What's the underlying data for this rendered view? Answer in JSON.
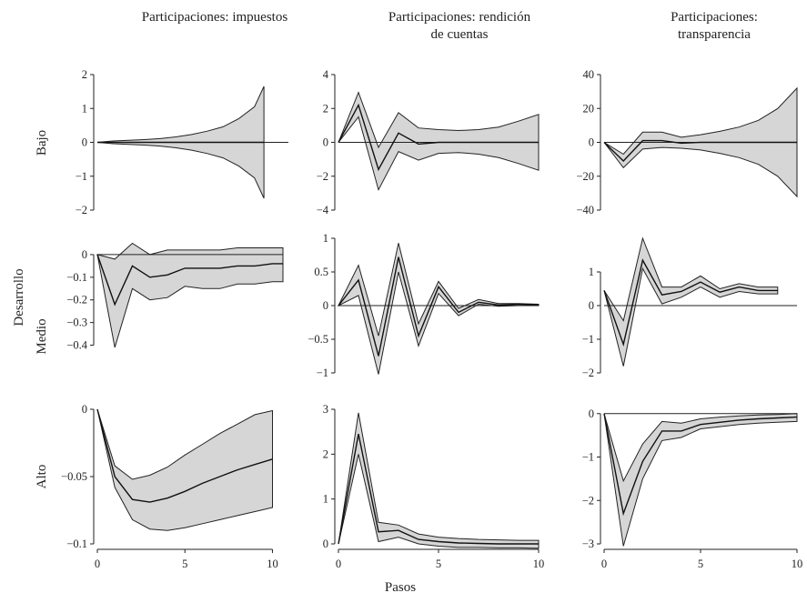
{
  "figure": {
    "column_titles": [
      [
        "Participaciones: impuestos"
      ],
      [
        "Participaciones: rendición",
        "de cuentas"
      ],
      [
        "Participaciones:",
        "transparencia"
      ]
    ],
    "row_labels": [
      "Bajo",
      "Medio",
      "Alto"
    ],
    "row_group_label": "Desarrollo",
    "xlabel": "Pasos"
  },
  "chart_data": [
    {
      "id": "p00",
      "type": "area",
      "row": "Bajo",
      "column": "Participaciones: impuestos",
      "x": [
        0,
        1,
        2,
        3,
        4,
        5,
        6,
        7,
        8,
        9,
        10
      ],
      "xlim": [
        0,
        11
      ],
      "xticks": [
        0,
        5,
        10
      ],
      "ylim": [
        -2,
        2
      ],
      "yticks": [
        -2,
        -1,
        0,
        1,
        2
      ],
      "ytick_labels": [
        "−2",
        "−1",
        "0",
        "1",
        "2"
      ],
      "mean": [
        0,
        0,
        0,
        0,
        0,
        0,
        0,
        0,
        0,
        0,
        0,
        0
      ],
      "lower": [
        0,
        -0.04,
        -0.06,
        -0.08,
        -0.11,
        -0.16,
        -0.23,
        -0.33,
        -0.46,
        -0.7,
        -1.05,
        -1.65
      ],
      "upper": [
        0,
        0.04,
        0.06,
        0.08,
        0.11,
        0.16,
        0.23,
        0.33,
        0.46,
        0.7,
        1.05,
        1.65
      ],
      "x_full": [
        0,
        1,
        2,
        3,
        4,
        5,
        6,
        7,
        8,
        9,
        10,
        10.6
      ]
    },
    {
      "id": "p01",
      "type": "area",
      "row": "Bajo",
      "column": "Participaciones: rendición de cuentas",
      "x": [
        0,
        1,
        2,
        3,
        4,
        5,
        6,
        7,
        8,
        9,
        10
      ],
      "xlim": [
        0,
        10
      ],
      "xticks": [
        0,
        5,
        10
      ],
      "ylim": [
        -4,
        4
      ],
      "yticks": [
        -4,
        -2,
        0,
        2,
        4
      ],
      "ytick_labels": [
        "−4",
        "−2",
        "0",
        "2",
        "4"
      ],
      "mean": [
        0,
        2.2,
        -1.6,
        0.55,
        -0.1,
        0,
        0,
        0,
        0,
        0,
        0
      ],
      "lower": [
        0,
        1.5,
        -2.8,
        -0.55,
        -1.05,
        -0.65,
        -0.6,
        -0.7,
        -0.9,
        -1.25,
        -1.65
      ],
      "upper": [
        0,
        2.95,
        -0.3,
        1.75,
        0.85,
        0.75,
        0.7,
        0.75,
        0.9,
        1.25,
        1.65
      ]
    },
    {
      "id": "p02",
      "type": "area",
      "row": "Bajo",
      "column": "Participaciones: transparencia",
      "x": [
        0,
        1,
        2,
        3,
        4,
        5,
        6,
        7,
        8,
        9,
        10
      ],
      "xlim": [
        0,
        10
      ],
      "xticks": [
        0,
        5,
        10
      ],
      "ylim": [
        -40,
        40
      ],
      "yticks": [
        -40,
        -20,
        0,
        20,
        40
      ],
      "ytick_labels": [
        "−40",
        "−20",
        "0",
        "20",
        "40"
      ],
      "mean": [
        0,
        -11,
        1,
        1,
        -0.5,
        0,
        0,
        0,
        0,
        0,
        0
      ],
      "lower": [
        0,
        -15,
        -4,
        -3,
        -3.5,
        -4.5,
        -6.5,
        -9,
        -13,
        -20,
        -32
      ],
      "upper": [
        0,
        -7,
        6,
        6,
        3,
        4.5,
        6.5,
        9,
        13,
        20,
        32
      ]
    },
    {
      "id": "p10",
      "type": "area",
      "row": "Medio",
      "column": "Participaciones: impuestos",
      "x": [
        0,
        1,
        2,
        3,
        4,
        5,
        6,
        7,
        8,
        9,
        10
      ],
      "xlim": [
        0,
        10.6
      ],
      "xticks": [
        0,
        5,
        10
      ],
      "ylim": [
        -0.45,
        0.08
      ],
      "yticks": [
        -0.4,
        -0.3,
        -0.2,
        -0.1,
        0
      ],
      "ytick_labels": [
        "−0.4",
        "−0.3",
        "−0.2",
        "−0.1",
        "0"
      ],
      "mean": [
        0,
        -0.22,
        -0.05,
        -0.1,
        -0.09,
        -0.06,
        -0.06,
        -0.06,
        -0.05,
        -0.05,
        -0.04,
        -0.04
      ],
      "lower": [
        0,
        -0.41,
        -0.15,
        -0.2,
        -0.19,
        -0.14,
        -0.15,
        -0.15,
        -0.13,
        -0.13,
        -0.12,
        -0.12
      ],
      "upper": [
        0,
        -0.02,
        0.05,
        0.0,
        0.02,
        0.02,
        0.02,
        0.02,
        0.03,
        0.03,
        0.03,
        0.03
      ],
      "x_full": [
        0,
        1,
        2,
        3,
        4,
        5,
        6,
        7,
        8,
        9,
        10,
        10.6
      ]
    },
    {
      "id": "p11",
      "type": "area",
      "row": "Medio",
      "column": "Participaciones: rendición de cuentas",
      "x": [
        0,
        1,
        2,
        3,
        4,
        5,
        6,
        7,
        8,
        9,
        10
      ],
      "xlim": [
        0,
        10
      ],
      "xticks": [
        0,
        5,
        10
      ],
      "ylim": [
        -1,
        1
      ],
      "yticks": [
        -1,
        -0.5,
        0,
        0.5,
        1
      ],
      "ytick_labels": [
        "−1",
        "−0.5",
        "0",
        "0.5",
        "1"
      ],
      "mean": [
        0,
        0.38,
        -0.75,
        0.72,
        -0.45,
        0.28,
        -0.1,
        0.05,
        0.01,
        0.02,
        0.01
      ],
      "lower": [
        0,
        0.15,
        -1.02,
        0.5,
        -0.6,
        0.18,
        -0.15,
        0.02,
        -0.01,
        0.0,
        0.0
      ],
      "upper": [
        0,
        0.6,
        -0.45,
        0.93,
        -0.27,
        0.36,
        -0.04,
        0.09,
        0.03,
        0.03,
        0.02
      ]
    },
    {
      "id": "p12",
      "type": "area",
      "row": "Medio",
      "column": "Participaciones: transparencia",
      "x": [
        0,
        1,
        2,
        3,
        4,
        5,
        6,
        7,
        8,
        9,
        10
      ],
      "xlim": [
        0,
        10
      ],
      "xticks": [
        0,
        5,
        10
      ],
      "ylim": [
        -2,
        2
      ],
      "yticks": [
        -2,
        -1,
        0,
        1
      ],
      "ytick_labels": [
        "−2",
        "−1",
        "0",
        "1"
      ],
      "mean": [
        0.45,
        -1.15,
        1.35,
        0.32,
        0.42,
        0.7,
        0.4,
        0.55,
        0.45,
        0.45
      ],
      "lower": [
        0.45,
        -1.8,
        1.1,
        0.05,
        0.25,
        0.55,
        0.25,
        0.42,
        0.35,
        0.35
      ],
      "upper": [
        0.45,
        -0.45,
        2.0,
        0.55,
        0.55,
        0.88,
        0.5,
        0.65,
        0.55,
        0.55
      ],
      "x_full": [
        0,
        1,
        2,
        3,
        4,
        5,
        6,
        7,
        8,
        9
      ]
    },
    {
      "id": "p20",
      "type": "area",
      "row": "Alto",
      "column": "Participaciones: impuestos",
      "x": [
        0,
        1,
        2,
        3,
        4,
        5,
        6,
        7,
        8,
        9,
        10
      ],
      "xlim": [
        0,
        10.6
      ],
      "xticks": [
        0,
        5,
        10
      ],
      "ylim": [
        -0.1,
        0
      ],
      "yticks": [
        -0.1,
        -0.05,
        0
      ],
      "ytick_labels": [
        "−0.1",
        "−0.05",
        "0"
      ],
      "mean": [
        0,
        -0.05,
        -0.067,
        -0.069,
        -0.066,
        -0.061,
        -0.055,
        -0.05,
        -0.045,
        -0.041,
        -0.037
      ],
      "lower": [
        0,
        -0.058,
        -0.082,
        -0.089,
        -0.09,
        -0.088,
        -0.085,
        -0.082,
        -0.079,
        -0.076,
        -0.073
      ],
      "upper": [
        0,
        -0.042,
        -0.052,
        -0.049,
        -0.043,
        -0.034,
        -0.026,
        -0.018,
        -0.011,
        -0.004,
        -0.001
      ]
    },
    {
      "id": "p21",
      "type": "area",
      "row": "Alto",
      "column": "Participaciones: rendición de cuentas",
      "x": [
        0,
        1,
        2,
        3,
        4,
        5,
        6,
        7,
        8,
        9,
        10
      ],
      "xlim": [
        0,
        10
      ],
      "xticks": [
        0,
        5,
        10
      ],
      "ylim": [
        0,
        3
      ],
      "yticks": [
        0,
        1,
        2,
        3
      ],
      "ytick_labels": [
        "0",
        "1",
        "2",
        "3"
      ],
      "mean": [
        0,
        2.45,
        0.27,
        0.3,
        0.1,
        0.05,
        0.02,
        0.01,
        0.0,
        0.0,
        0.0
      ],
      "lower": [
        0,
        2.0,
        0.05,
        0.15,
        0.0,
        -0.05,
        -0.08,
        -0.08,
        -0.09,
        -0.09,
        -0.1
      ],
      "upper": [
        0,
        2.92,
        0.48,
        0.42,
        0.22,
        0.15,
        0.12,
        0.1,
        0.09,
        0.08,
        0.08
      ]
    },
    {
      "id": "p22",
      "type": "area",
      "row": "Alto",
      "column": "Participaciones: transparencia",
      "x": [
        0,
        1,
        2,
        3,
        4,
        5,
        6,
        7,
        8,
        9,
        10
      ],
      "xlim": [
        0,
        10
      ],
      "xticks": [
        0,
        5,
        10
      ],
      "ylim": [
        -3,
        0.1
      ],
      "yticks": [
        -3,
        -2,
        -1,
        0
      ],
      "ytick_labels": [
        "−3",
        "−2",
        "−1",
        "0"
      ],
      "mean": [
        0,
        -2.3,
        -1.1,
        -0.4,
        -0.4,
        -0.25,
        -0.2,
        -0.15,
        -0.12,
        -0.1,
        -0.08
      ],
      "lower": [
        0,
        -3.05,
        -1.5,
        -0.62,
        -0.55,
        -0.35,
        -0.3,
        -0.25,
        -0.22,
        -0.2,
        -0.18
      ],
      "upper": [
        0,
        -1.55,
        -0.7,
        -0.18,
        -0.22,
        -0.12,
        -0.08,
        -0.05,
        -0.03,
        -0.02,
        0.0
      ]
    }
  ]
}
